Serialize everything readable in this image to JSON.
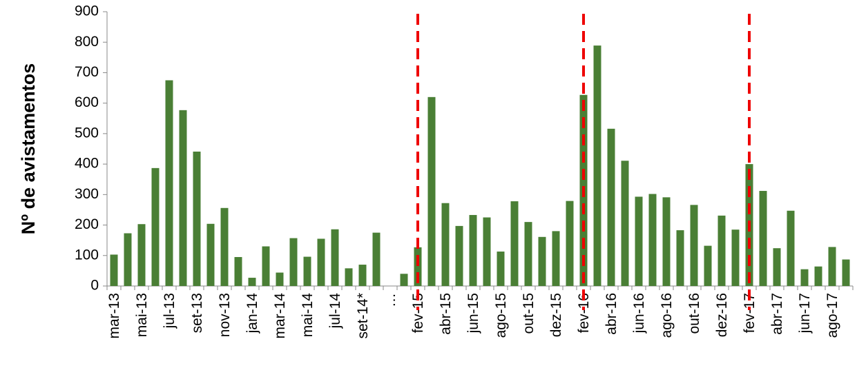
{
  "chart_data": {
    "type": "bar",
    "y_label": "Nº de avistamentos",
    "categories": [
      "mar-13",
      null,
      "mai-13",
      null,
      "jul-13",
      null,
      "set-13",
      null,
      "nov-13",
      null,
      "jan-14",
      null,
      "mar-14",
      null,
      "mai-14",
      null,
      "jul-14",
      null,
      "set-14*",
      null,
      "…",
      null,
      "fev-15",
      null,
      "abr-15",
      null,
      "jun-15",
      null,
      "ago-15",
      null,
      "out-15",
      null,
      "dez-15",
      null,
      "fev-16",
      null,
      "abr-16",
      null,
      "jun-16",
      null,
      "ago-16",
      null,
      "out-16",
      null,
      "dez-16",
      null,
      "fev-17",
      null,
      "abr-17",
      null,
      "jun-17",
      null,
      "ago-17",
      null
    ],
    "values": [
      103,
      173,
      203,
      387,
      675,
      577,
      441,
      204,
      256,
      95,
      27,
      130,
      44,
      157,
      96,
      155,
      186,
      58,
      70,
      175,
      null,
      40,
      127,
      620,
      272,
      197,
      233,
      225,
      113,
      278,
      210,
      161,
      180,
      279,
      627,
      789,
      516,
      411,
      293,
      302,
      291,
      183,
      266,
      132,
      231,
      185,
      400,
      312,
      124,
      247,
      55,
      64,
      128,
      87
    ],
    "color": "#4a7f35",
    "ylim": [
      0,
      900
    ],
    "yticks": [
      0,
      100,
      200,
      300,
      400,
      500,
      600,
      700,
      800,
      900
    ]
  }
}
